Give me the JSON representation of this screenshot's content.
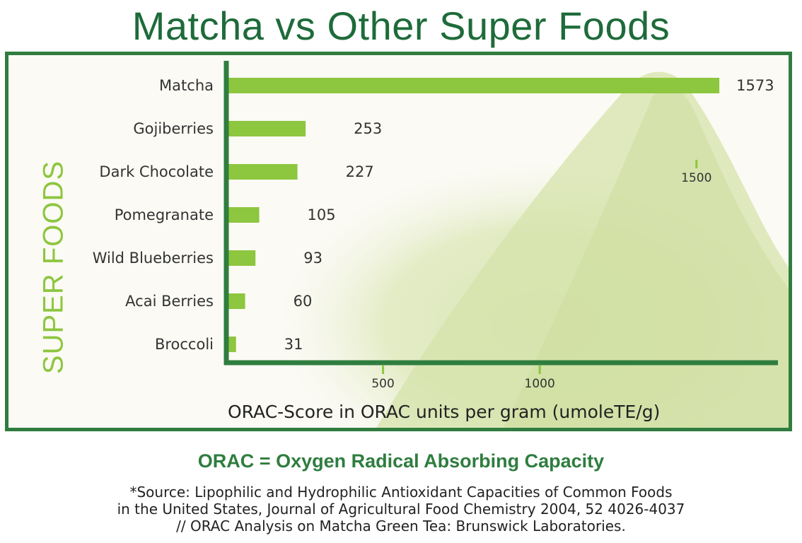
{
  "title": "Matcha vs Other Super Foods",
  "chart_data": {
    "type": "bar",
    "orientation": "horizontal",
    "categories": [
      "Matcha",
      "Gojiberries",
      "Dark Chocolate",
      "Pomegranate",
      "Wild Blueberries",
      "Acai Berries",
      "Broccoli"
    ],
    "values": [
      1573,
      253,
      227,
      105,
      93,
      60,
      31
    ],
    "value_labels": [
      "1573",
      "253",
      "227",
      "105",
      "93",
      "60",
      "31"
    ],
    "ylabel": "SUPER FOODS",
    "xlabel": "ORAC-Score in ORAC units per gram (umoleTE/g)",
    "xticks": [
      500,
      1000,
      1500
    ],
    "xtick_labels": [
      "500",
      "1000",
      "1500"
    ],
    "xlim": [
      0,
      1760
    ],
    "grid": false,
    "legend": "none",
    "bar_color": "#8dc63f",
    "axis_color": "#2f7d3f"
  },
  "orac_definition": "ORAC = Oxygen Radical Absorbing Capacity",
  "source_lines": [
    "*Source: Lipophilic and Hydrophilic Antioxidant Capacities of Common Foods",
    "in the United States, Journal of Agricultural Food Chemistry 2004, 52 4026-4037",
    "// ORAC Analysis on Matcha Green Tea: Brunswick Laboratories."
  ]
}
